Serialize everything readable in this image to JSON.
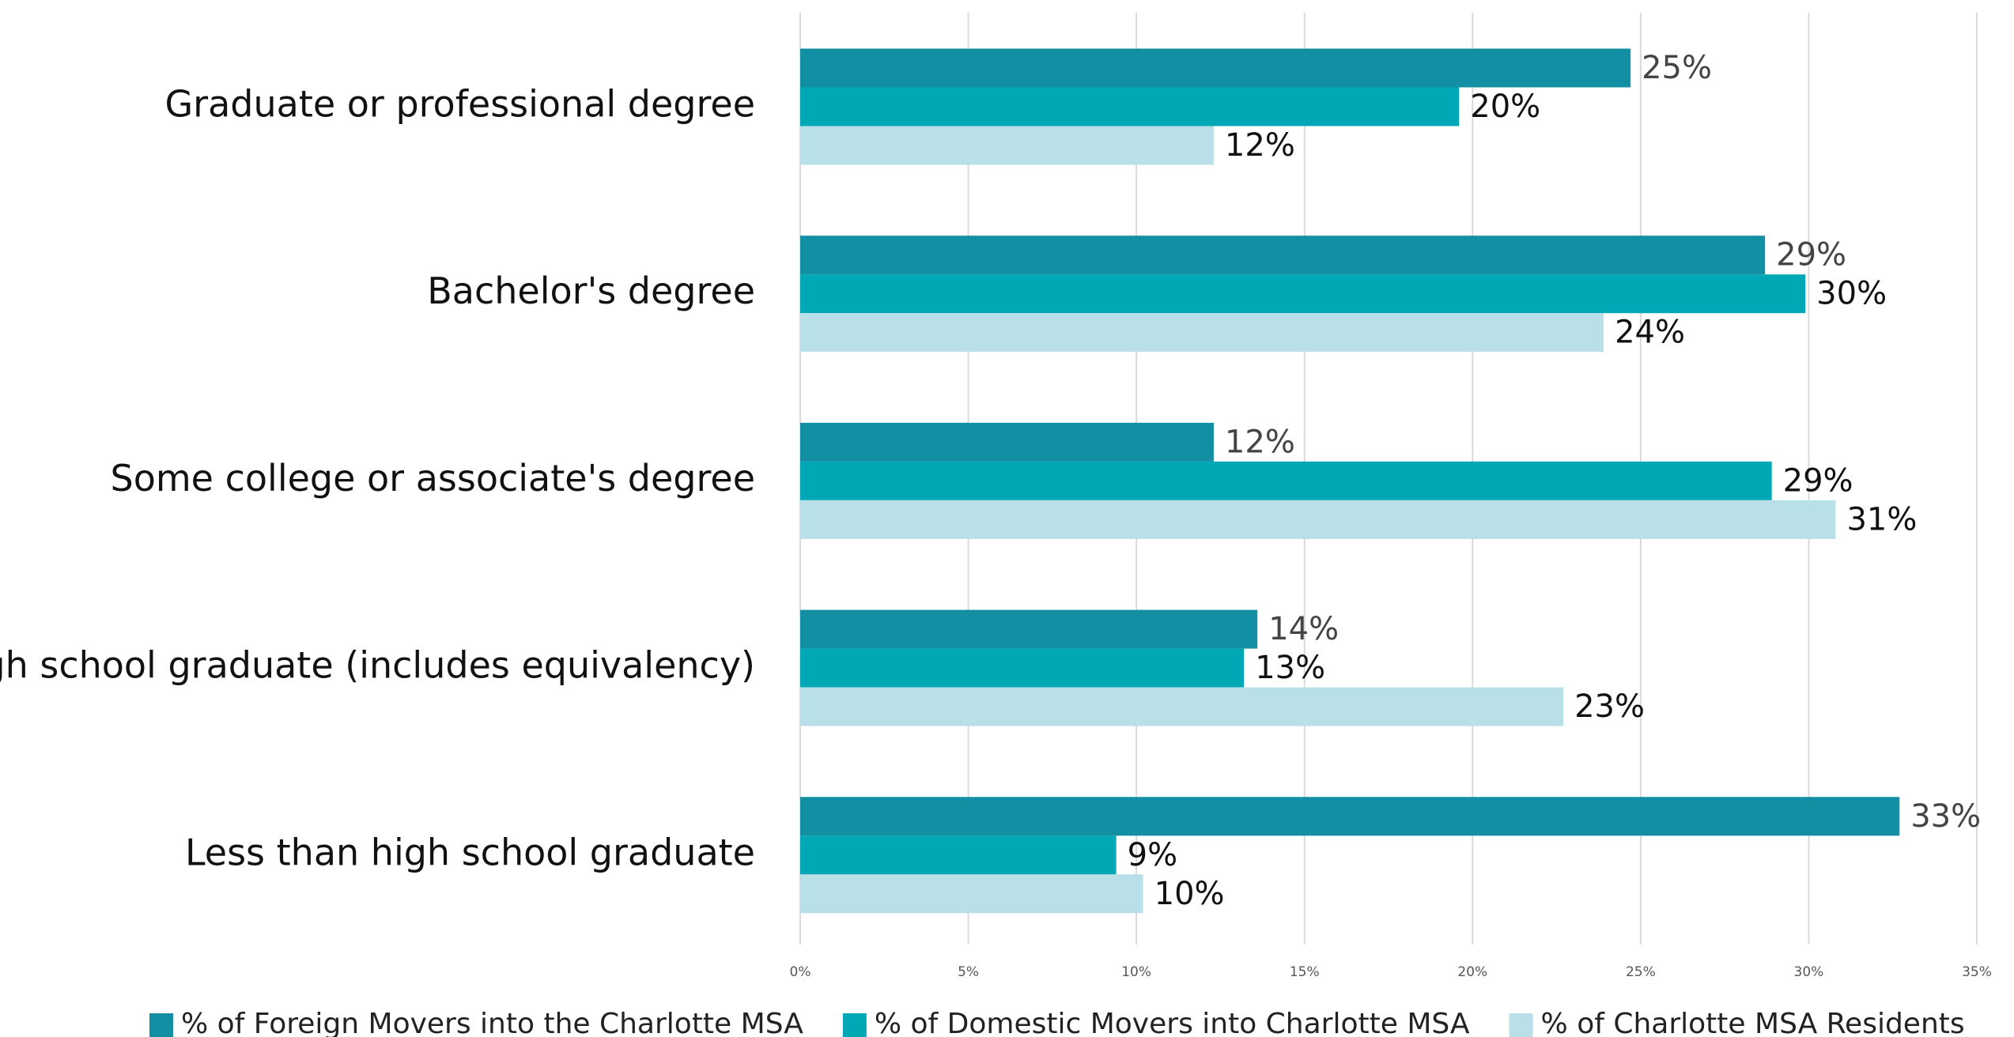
{
  "chart_data": {
    "type": "barh",
    "categories": [
      "Graduate or professional degree",
      "Bachelor's degree",
      "Some college or associate's degree",
      "High school graduate (includes equivalency)",
      "Less than high school graduate"
    ],
    "series": [
      {
        "name": "% of Foreign Movers into the Charlotte MSA",
        "color": "#128fa3",
        "values": [
          24.7,
          28.7,
          12.3,
          13.6,
          32.7
        ],
        "value_labels": [
          "25%",
          "29%",
          "12%",
          "14%",
          "33%"
        ]
      },
      {
        "name": "% of Domestic Movers into Charlotte MSA",
        "color": "#00a8b5",
        "values": [
          19.6,
          29.9,
          28.9,
          13.2,
          9.4
        ],
        "value_labels": [
          "20%",
          "30%",
          "29%",
          "13%",
          "9%"
        ]
      },
      {
        "name": "% of Charlotte MSA Residents",
        "color": "#b9dfe8",
        "values": [
          12.3,
          23.9,
          30.8,
          22.7,
          10.2
        ],
        "value_labels": [
          "12%",
          "24%",
          "31%",
          "23%",
          "10%"
        ]
      }
    ],
    "xlim": [
      0,
      35
    ],
    "xticks": [
      {
        "value": 0,
        "label": "0%"
      },
      {
        "value": 5,
        "label": "5%"
      },
      {
        "value": 10,
        "label": "10%"
      },
      {
        "value": 15,
        "label": "15%"
      },
      {
        "value": 20,
        "label": "20%"
      },
      {
        "value": 25,
        "label": "25%"
      },
      {
        "value": 30,
        "label": "30%"
      },
      {
        "value": 35,
        "label": "35%"
      }
    ],
    "grid": true,
    "legend": "bottom"
  }
}
